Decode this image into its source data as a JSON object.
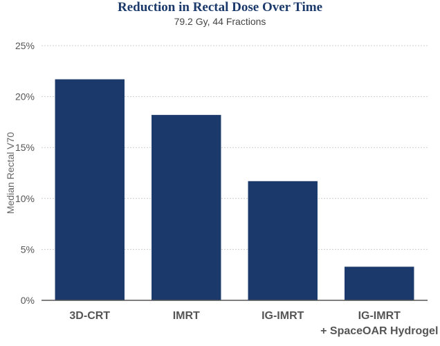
{
  "chart_data": {
    "type": "bar",
    "title": "Reduction in Rectal Dose Over Time",
    "subtitle": "79.2 Gy, 44 Fractions",
    "ylabel": "Median Rectal V70",
    "xlabel": "",
    "categories": [
      [
        "3D-CRT"
      ],
      [
        "IMRT"
      ],
      [
        "IG-IMRT"
      ],
      [
        "IG-IMRT",
        "+ SpaceOAR Hydrogel"
      ]
    ],
    "values": [
      21.7,
      18.2,
      11.7,
      3.3
    ],
    "ylim": [
      0,
      25
    ],
    "yticks": [
      0,
      5,
      10,
      15,
      20,
      25
    ],
    "ytick_labels": [
      "0%",
      "5%",
      "10%",
      "15%",
      "20%",
      "25%"
    ],
    "grid": true,
    "legend": "none",
    "colors": {
      "bar": "#1b3a6b",
      "grid": "#cccccc",
      "axis": "#555555"
    }
  }
}
